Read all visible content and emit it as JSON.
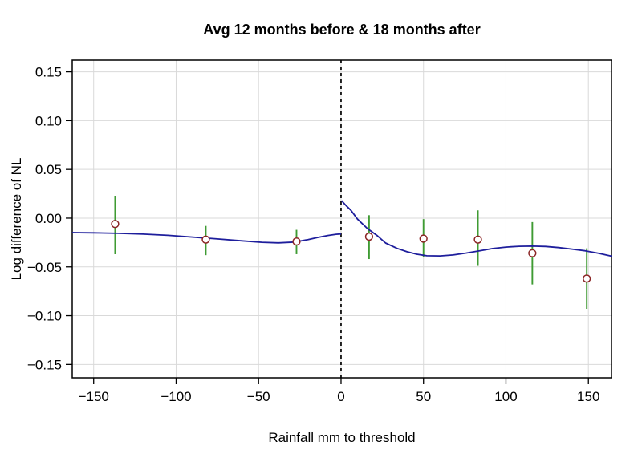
{
  "chart_data": {
    "type": "scatter",
    "title": "Avg 12 months before & 18 months after",
    "xlabel": "Rainfall mm to threshold",
    "ylabel": "Log difference of NL",
    "xlim": [
      -163,
      164
    ],
    "ylim": [
      -0.1637,
      0.162
    ],
    "x_ticks": [
      -150,
      -100,
      -50,
      0,
      50,
      100,
      150
    ],
    "x_tick_labels": [
      "−150",
      "−100",
      "−50",
      "0",
      "50",
      "100",
      "150"
    ],
    "y_ticks": [
      0.15,
      0.1,
      0.05,
      0.0,
      -0.05,
      -0.1,
      -0.15
    ],
    "y_tick_labels": [
      "0.15",
      "0.10",
      "0.05",
      "0.00",
      "−0.05",
      "−0.10",
      "−0.15"
    ],
    "grid": true,
    "legend_position": "none",
    "threshold_x": 0,
    "points": [
      {
        "x": -137,
        "y": -0.006,
        "lo": -0.037,
        "hi": 0.023
      },
      {
        "x": -82,
        "y": -0.022,
        "lo": -0.038,
        "hi": -0.008
      },
      {
        "x": -27,
        "y": -0.024,
        "lo": -0.037,
        "hi": -0.012
      },
      {
        "x": 17,
        "y": -0.019,
        "lo": -0.042,
        "hi": 0.003
      },
      {
        "x": 50,
        "y": -0.021,
        "lo": -0.04,
        "hi": -0.001
      },
      {
        "x": 83,
        "y": -0.022,
        "lo": -0.049,
        "hi": 0.008
      },
      {
        "x": 116,
        "y": -0.036,
        "lo": -0.068,
        "hi": -0.004
      },
      {
        "x": 149,
        "y": -0.062,
        "lo": -0.093,
        "hi": -0.031
      }
    ],
    "fit_left": [
      [
        -163,
        -0.0148
      ],
      [
        -150,
        -0.0151
      ],
      [
        -135,
        -0.0156
      ],
      [
        -120,
        -0.0164
      ],
      [
        -105,
        -0.0176
      ],
      [
        -90,
        -0.0194
      ],
      [
        -75,
        -0.0213
      ],
      [
        -60,
        -0.0233
      ],
      [
        -48,
        -0.0248
      ],
      [
        -38,
        -0.0254
      ],
      [
        -28,
        -0.0245
      ],
      [
        -20,
        -0.022
      ],
      [
        -14,
        -0.0198
      ],
      [
        -8,
        -0.0178
      ],
      [
        -3,
        -0.0166
      ],
      [
        0,
        -0.0162
      ]
    ],
    "fit_right": [
      [
        0.3,
        0.018
      ],
      [
        3,
        0.013
      ],
      [
        6,
        0.008
      ],
      [
        10,
        -0.001
      ],
      [
        16,
        -0.0107
      ],
      [
        22,
        -0.018
      ],
      [
        27,
        -0.0255
      ],
      [
        34,
        -0.031
      ],
      [
        40,
        -0.0345
      ],
      [
        46,
        -0.037
      ],
      [
        52,
        -0.0386
      ],
      [
        60,
        -0.0388
      ],
      [
        68,
        -0.0378
      ],
      [
        76,
        -0.0358
      ],
      [
        84,
        -0.0335
      ],
      [
        92,
        -0.0312
      ],
      [
        100,
        -0.0297
      ],
      [
        108,
        -0.0289
      ],
      [
        116,
        -0.0287
      ],
      [
        124,
        -0.0291
      ],
      [
        132,
        -0.0302
      ],
      [
        140,
        -0.0318
      ],
      [
        148,
        -0.0335
      ],
      [
        156,
        -0.036
      ],
      [
        164,
        -0.039
      ]
    ],
    "colors": {
      "fit_line": "#1e1e9c",
      "error_bar": "#3f9b33",
      "point_stroke": "#8b2525",
      "point_fill": "#ffffff",
      "grid": "#d9d9d9",
      "threshold": "#000000",
      "axis": "#000000"
    }
  }
}
